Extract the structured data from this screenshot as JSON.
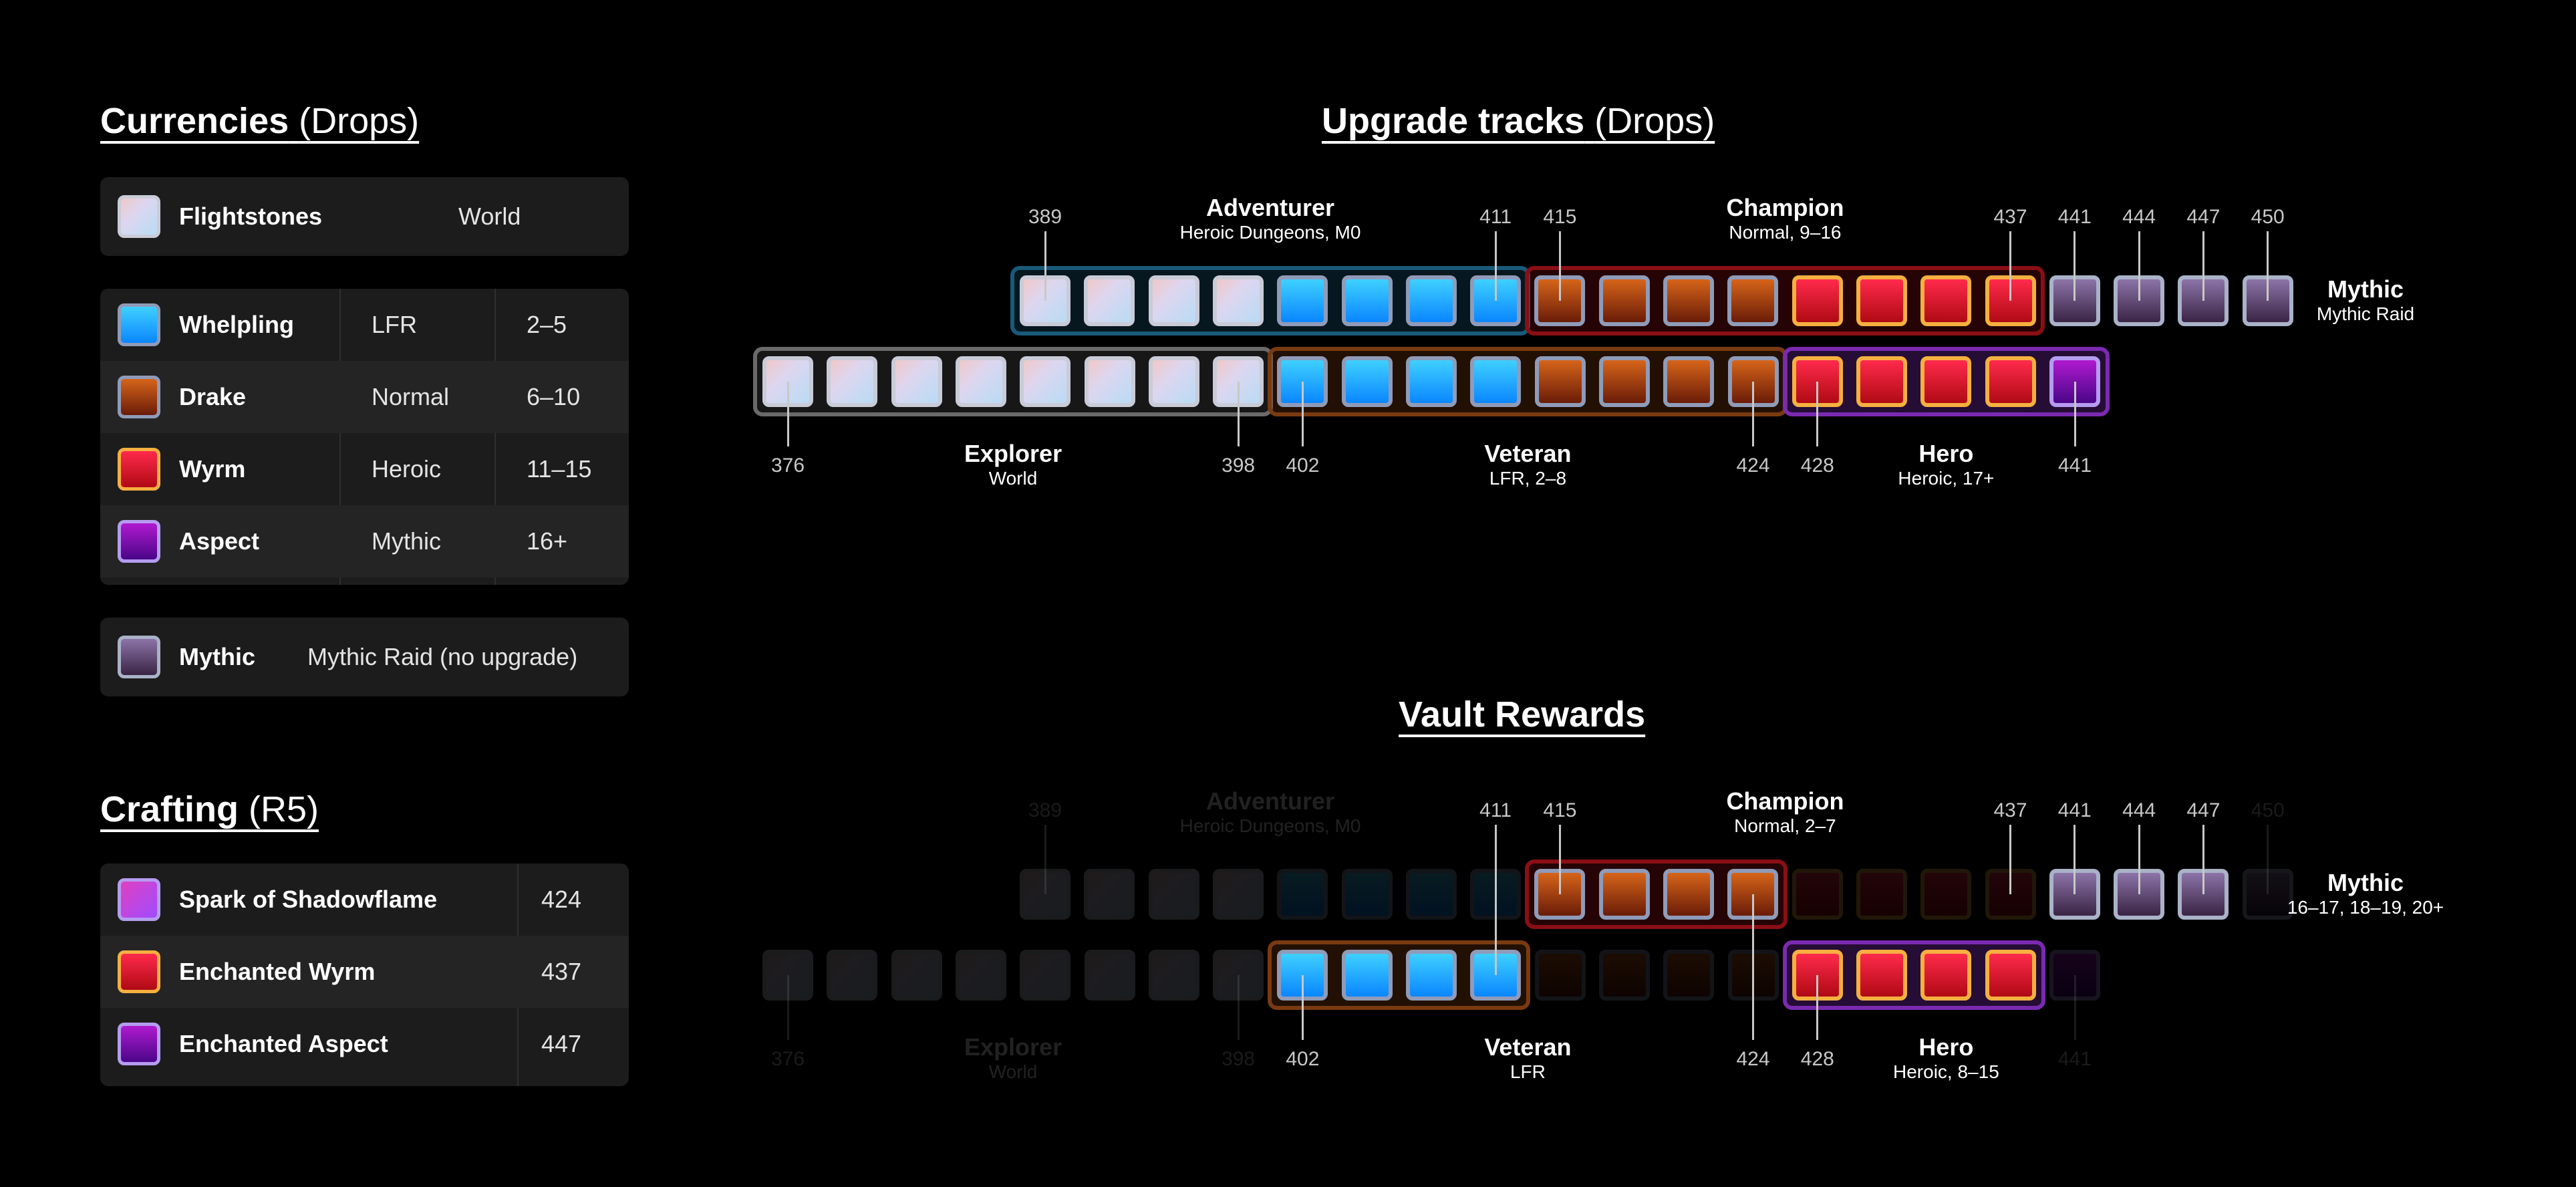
{
  "currencies": {
    "title": "Currencies",
    "title_sub": "(Drops)",
    "flightstones": {
      "name": "Flightstones",
      "source": "World"
    },
    "crests": [
      {
        "name": "Whelpling",
        "difficulty": "LFR",
        "range": "2–5",
        "icon": "whelpling-crest-icon"
      },
      {
        "name": "Drake",
        "difficulty": "Normal",
        "range": "6–10",
        "icon": "drake-crest-icon"
      },
      {
        "name": "Wyrm",
        "difficulty": "Heroic",
        "range": "11–15",
        "icon": "wyrm-crest-icon"
      },
      {
        "name": "Aspect",
        "difficulty": "Mythic",
        "range": "16+",
        "icon": "aspect-crest-icon"
      }
    ],
    "mythic": {
      "name": "Mythic",
      "source": "Mythic Raid (no upgrade)"
    }
  },
  "crafting": {
    "title": "Crafting",
    "title_sub": "(R5)",
    "items": [
      {
        "name": "Spark of Shadowflame",
        "ilvl": "424",
        "icon": "spark-icon"
      },
      {
        "name": "Enchanted Wyrm",
        "ilvl": "437",
        "icon": "enchanted-wyrm-icon"
      },
      {
        "name": "Enchanted Aspect",
        "ilvl": "447",
        "icon": "enchanted-aspect-icon"
      }
    ]
  },
  "upgrade_tracks": {
    "title": "Upgrade tracks",
    "title_sub": "(Drops)",
    "adventurer": {
      "name": "Adventurer",
      "sub": "Heroic Dungeons, M0"
    },
    "champion": {
      "name": "Champion",
      "sub": "Normal, 9–16"
    },
    "mythic": {
      "name": "Mythic",
      "sub": "Mythic Raid"
    },
    "explorer": {
      "name": "Explorer",
      "sub": "World"
    },
    "veteran": {
      "name": "Veteran",
      "sub": "LFR, 2–8"
    },
    "hero": {
      "name": "Hero",
      "sub": "Heroic, 17+"
    },
    "top_numbers": [
      "389",
      "411",
      "415",
      "437",
      "441",
      "444",
      "447",
      "450"
    ],
    "bottom_numbers": [
      "376",
      "398",
      "402",
      "424",
      "428",
      "441"
    ]
  },
  "vault_rewards": {
    "title": "Vault Rewards",
    "adventurer": {
      "name": "Adventurer",
      "sub": "Heroic Dungeons, M0"
    },
    "champion": {
      "name": "Champion",
      "sub": "Normal, 2–7"
    },
    "mythic": {
      "name": "Mythic",
      "sub": "16–17, 18–19, 20+"
    },
    "explorer": {
      "name": "Explorer",
      "sub": "World"
    },
    "veteran": {
      "name": "Veteran",
      "sub": "LFR"
    },
    "hero": {
      "name": "Hero",
      "sub": "Heroic, 8–15"
    },
    "top_numbers": [
      "389",
      "411",
      "415",
      "437",
      "441",
      "444",
      "447",
      "450"
    ],
    "bottom_numbers": [
      "376",
      "398",
      "402",
      "424",
      "428",
      "441"
    ]
  },
  "colors": {
    "background": "#000000",
    "panel": "#1c1c1c",
    "adventurer_group": "#1a5a7a",
    "champion_group": "#8a0f14",
    "explorer_group": "#6a6a6a",
    "veteran_group": "#7a3a10",
    "hero_group": "#7a2ab0"
  }
}
